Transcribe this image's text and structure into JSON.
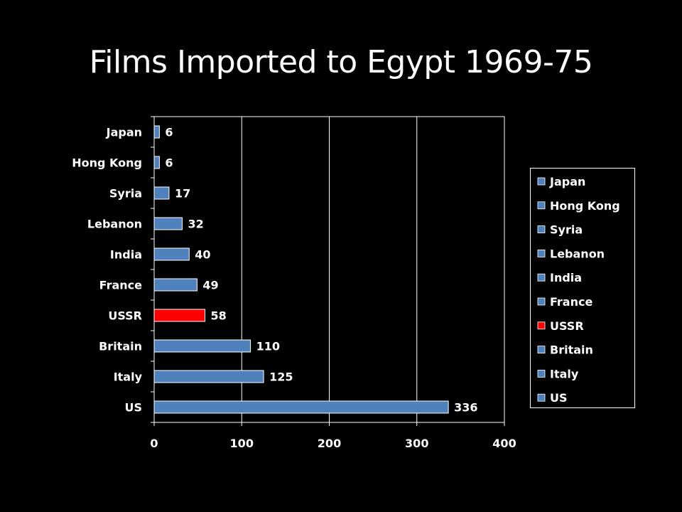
{
  "slide": {
    "title": "Films Imported to Egypt 1969-75"
  },
  "colors": {
    "bar_default": "#4F81BD",
    "bar_highlight": "#FF0000",
    "background": "#000000",
    "foreground": "#FFFFFF"
  },
  "chart_data": {
    "type": "bar",
    "orientation": "horizontal",
    "title": "",
    "xlabel": "",
    "ylabel": "",
    "categories": [
      "Japan",
      "Hong Kong",
      "Syria",
      "Lebanon",
      "India",
      "France",
      "USSR",
      "Britain",
      "Italy",
      "US"
    ],
    "values": [
      6,
      6,
      17,
      32,
      40,
      49,
      58,
      110,
      125,
      336
    ],
    "highlight": [
      "USSR"
    ],
    "xlim": [
      0,
      400
    ],
    "xticks": [
      0,
      100,
      200,
      300,
      400
    ],
    "grid": "vertical",
    "data_labels": true,
    "legend": {
      "position": "right",
      "entries": [
        "Japan",
        "Hong Kong",
        "Syria",
        "Lebanon",
        "India",
        "France",
        "USSR",
        "Britain",
        "Italy",
        "US"
      ]
    }
  }
}
